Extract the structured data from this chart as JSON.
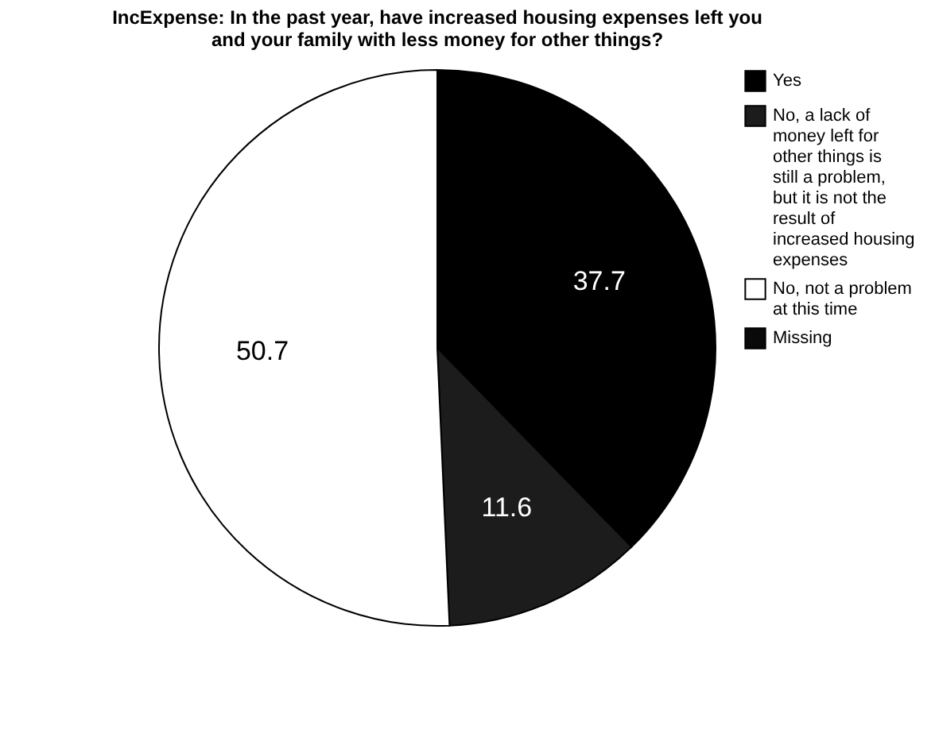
{
  "chart_data": {
    "type": "pie",
    "title": "IncExpense: In the past year, have increased housing expenses left you and your family with less money for other things?",
    "categories": [
      "Yes",
      "No, a lack of money left for other things is still a problem, but it is not the result of increased housing expenses",
      "No, not a problem at this time",
      "Missing"
    ],
    "values": [
      37.7,
      11.6,
      50.7,
      0
    ],
    "colors": [
      "#000000",
      "#1c1c1c",
      "#ffffff",
      "#0a0a0a"
    ],
    "value_labels": [
      "37.7",
      "11.6",
      "50.7",
      null
    ],
    "legend": "right"
  }
}
